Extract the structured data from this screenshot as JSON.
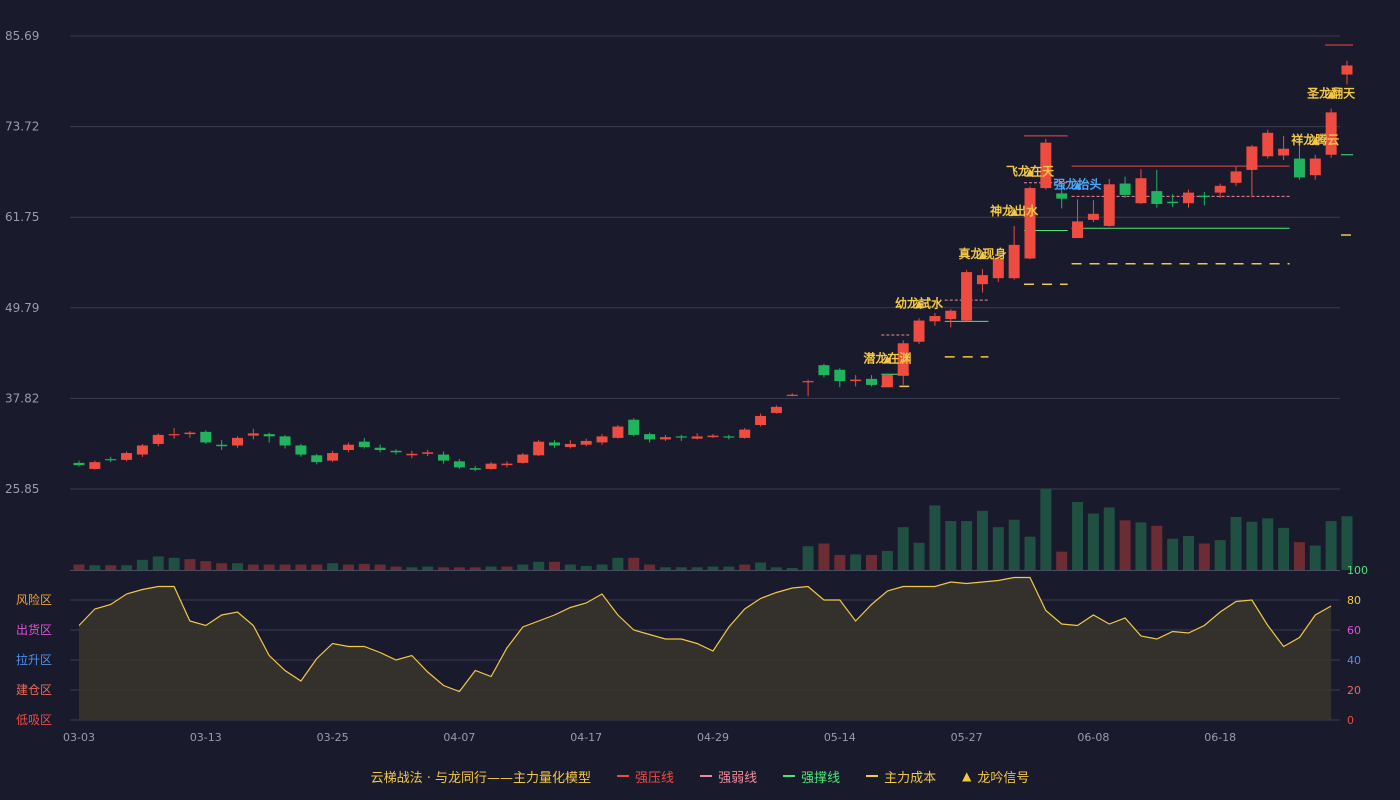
{
  "colors": {
    "background": "#191a2c",
    "up": "#ee4b41",
    "down": "#22b35e",
    "grid": "#3a3c50",
    "axis_text": "#9a9bb0",
    "signal_text": "#f2c744",
    "signal_blue": "#4fa6f5",
    "strong_press": "#ee4b41",
    "strong_weak": "#f08a9a",
    "strong_support": "#4ce678",
    "main_cost": "#f2c744",
    "osc_line": "#f2c744",
    "osc_fill": "#37342d",
    "vol_up": "#6b2c33",
    "vol_down": "#1f5042"
  },
  "legend": {
    "title": "云梯战法 · 与龙同行——主力量化模型",
    "items": [
      {
        "label": "强压线",
        "color": "#ee4b41",
        "style": "solid"
      },
      {
        "label": "强弱线",
        "color": "#f08a9a",
        "style": "dashed"
      },
      {
        "label": "强撑线",
        "color": "#4ce678",
        "style": "solid"
      },
      {
        "label": "主力成本",
        "color": "#f2c744",
        "style": "dashed"
      },
      {
        "label": "龙吟信号",
        "color": "#f2c744",
        "style": "triangle"
      }
    ]
  },
  "chart_data": {
    "type": "candlestick",
    "price_axis": {
      "ticks": [
        "85.69",
        "73.72",
        "61.75",
        "49.79",
        "37.82",
        "25.85"
      ],
      "range": [
        25.85,
        85.69
      ]
    },
    "x_ticks": [
      {
        "index": 0,
        "label": "03-03"
      },
      {
        "index": 8,
        "label": "03-13"
      },
      {
        "index": 16,
        "label": "03-25"
      },
      {
        "index": 24,
        "label": "04-07"
      },
      {
        "index": 32,
        "label": "04-17"
      },
      {
        "index": 40,
        "label": "04-29"
      },
      {
        "index": 48,
        "label": "05-14"
      },
      {
        "index": 56,
        "label": "05-27"
      },
      {
        "index": 64,
        "label": "06-08"
      },
      {
        "index": 72,
        "label": "06-18"
      }
    ],
    "candles": [
      [
        29.3,
        29.0,
        29.6,
        28.8
      ],
      [
        28.5,
        29.4,
        29.6,
        28.4
      ],
      [
        29.8,
        29.7,
        30.1,
        29.4
      ],
      [
        29.7,
        30.6,
        30.8,
        29.5
      ],
      [
        30.4,
        31.6,
        31.8,
        30.1
      ],
      [
        31.8,
        33.0,
        33.2,
        31.5
      ],
      [
        33.1,
        33.1,
        33.9,
        32.5
      ],
      [
        33.1,
        33.3,
        33.5,
        32.6
      ],
      [
        33.4,
        32.0,
        33.6,
        31.8
      ],
      [
        31.7,
        31.5,
        32.3,
        31.0
      ],
      [
        31.6,
        32.6,
        32.8,
        31.3
      ],
      [
        32.9,
        33.2,
        33.8,
        32.4
      ],
      [
        33.1,
        32.8,
        33.3,
        32.0
      ],
      [
        32.8,
        31.6,
        33.0,
        31.2
      ],
      [
        31.6,
        30.4,
        31.8,
        30.1
      ],
      [
        30.3,
        29.4,
        30.5,
        29.1
      ],
      [
        29.6,
        30.6,
        30.9,
        29.4
      ],
      [
        31.0,
        31.7,
        32.0,
        30.7
      ],
      [
        32.1,
        31.4,
        32.6,
        31.2
      ],
      [
        31.3,
        31.0,
        31.7,
        30.7
      ],
      [
        30.9,
        30.7,
        31.1,
        30.4
      ],
      [
        30.3,
        30.5,
        30.9,
        29.9
      ],
      [
        30.5,
        30.7,
        31.0,
        30.2
      ],
      [
        30.4,
        29.6,
        30.8,
        29.2
      ],
      [
        29.5,
        28.7,
        29.8,
        28.5
      ],
      [
        28.6,
        28.4,
        28.9,
        28.2
      ],
      [
        28.5,
        29.2,
        29.4,
        28.4
      ],
      [
        29.0,
        29.2,
        29.5,
        28.7
      ],
      [
        29.3,
        30.4,
        30.6,
        29.2
      ],
      [
        30.3,
        32.1,
        32.3,
        30.2
      ],
      [
        32.0,
        31.6,
        32.3,
        31.3
      ],
      [
        31.4,
        31.8,
        32.3,
        31.2
      ],
      [
        31.7,
        32.2,
        32.5,
        31.5
      ],
      [
        32.0,
        32.8,
        33.1,
        31.7
      ],
      [
        32.6,
        34.1,
        34.3,
        32.5
      ],
      [
        35.0,
        33.0,
        35.2,
        32.8
      ],
      [
        33.1,
        32.4,
        33.3,
        32.0
      ],
      [
        32.4,
        32.7,
        33.0,
        32.2
      ],
      [
        32.8,
        32.7,
        33.0,
        32.2
      ],
      [
        32.5,
        32.8,
        33.2,
        32.4
      ],
      [
        32.7,
        32.9,
        33.1,
        32.6
      ],
      [
        32.8,
        32.7,
        33.0,
        32.4
      ],
      [
        32.6,
        33.7,
        33.9,
        32.5
      ],
      [
        34.3,
        35.5,
        35.8,
        34.1
      ],
      [
        35.9,
        36.7,
        36.9,
        35.8
      ],
      [
        38.2,
        38.3,
        38.5,
        38.1
      ],
      [
        40.0,
        40.1,
        40.3,
        38.1
      ],
      [
        42.2,
        40.9,
        42.4,
        40.6
      ],
      [
        41.6,
        40.1,
        41.8,
        39.3
      ],
      [
        40.1,
        40.3,
        40.9,
        39.4
      ],
      [
        40.4,
        39.6,
        40.9,
        39.4
      ],
      [
        39.3,
        40.9,
        41.1,
        39.3
      ],
      [
        40.8,
        45.1,
        45.5,
        39.6
      ],
      [
        45.3,
        48.1,
        48.4,
        45.0
      ],
      [
        48.0,
        48.7,
        49.1,
        47.4
      ],
      [
        48.3,
        49.4,
        49.6,
        47.2
      ],
      [
        48.1,
        54.5,
        54.8,
        48.0
      ],
      [
        52.9,
        54.1,
        54.9,
        51.8
      ],
      [
        53.7,
        56.3,
        56.6,
        53.2
      ],
      [
        53.7,
        58.1,
        60.6,
        53.5
      ],
      [
        56.3,
        65.6,
        65.8,
        56.2
      ],
      [
        65.6,
        71.6,
        72.1,
        65.4
      ],
      [
        64.9,
        64.2,
        66.3,
        62.9
      ],
      [
        59.0,
        61.2,
        64.1,
        59.0
      ],
      [
        61.4,
        62.2,
        64.0,
        61.1
      ],
      [
        60.6,
        66.1,
        66.8,
        60.5
      ],
      [
        66.2,
        64.7,
        67.1,
        64.3
      ],
      [
        63.6,
        66.9,
        68.1,
        63.5
      ],
      [
        65.2,
        63.5,
        68.0,
        63.0
      ],
      [
        63.8,
        63.6,
        64.8,
        63.1
      ],
      [
        63.6,
        65.0,
        65.4,
        63.0
      ],
      [
        64.6,
        64.4,
        65.1,
        63.3
      ],
      [
        65.0,
        65.9,
        66.2,
        64.3
      ],
      [
        66.3,
        67.8,
        68.4,
        65.9
      ],
      [
        68.0,
        71.1,
        71.3,
        64.4
      ],
      [
        69.8,
        72.9,
        73.3,
        69.5
      ],
      [
        69.9,
        70.8,
        72.5,
        69.3
      ],
      [
        69.5,
        67.0,
        71.6,
        66.7
      ],
      [
        67.3,
        69.5,
        70.0,
        66.7
      ],
      [
        70.0,
        75.6,
        76.1,
        69.6
      ],
      [
        80.6,
        81.8,
        82.4,
        79.3
      ]
    ],
    "volume": [
      [
        "up",
        0.8
      ],
      [
        "down",
        0.7
      ],
      [
        "up",
        0.7
      ],
      [
        "down",
        0.7
      ],
      [
        "down",
        1.5
      ],
      [
        "down",
        2.0
      ],
      [
        "down",
        1.8
      ],
      [
        "up",
        1.6
      ],
      [
        "up",
        1.3
      ],
      [
        "up",
        1.0
      ],
      [
        "down",
        1.0
      ],
      [
        "up",
        0.8
      ],
      [
        "up",
        0.8
      ],
      [
        "up",
        0.8
      ],
      [
        "up",
        0.8
      ],
      [
        "up",
        0.8
      ],
      [
        "down",
        1.0
      ],
      [
        "up",
        0.8
      ],
      [
        "up",
        0.9
      ],
      [
        "up",
        0.8
      ],
      [
        "up",
        0.5
      ],
      [
        "down",
        0.4
      ],
      [
        "down",
        0.5
      ],
      [
        "up",
        0.4
      ],
      [
        "up",
        0.4
      ],
      [
        "up",
        0.4
      ],
      [
        "down",
        0.5
      ],
      [
        "up",
        0.5
      ],
      [
        "down",
        0.8
      ],
      [
        "down",
        1.2
      ],
      [
        "up",
        1.2
      ],
      [
        "down",
        0.8
      ],
      [
        "down",
        0.6
      ],
      [
        "down",
        0.8
      ],
      [
        "down",
        1.8
      ],
      [
        "up",
        1.8
      ],
      [
        "up",
        0.8
      ],
      [
        "down",
        0.4
      ],
      [
        "down",
        0.4
      ],
      [
        "down",
        0.4
      ],
      [
        "down",
        0.5
      ],
      [
        "down",
        0.5
      ],
      [
        "up",
        0.8
      ],
      [
        "down",
        1.1
      ],
      [
        "down",
        0.4
      ],
      [
        "down",
        0.3
      ],
      [
        "down",
        3.5
      ],
      [
        "up",
        3.9
      ],
      [
        "up",
        2.2
      ],
      [
        "down",
        2.3
      ],
      [
        "up",
        2.2
      ],
      [
        "down",
        2.8
      ],
      [
        "down",
        6.3
      ],
      [
        "down",
        4.0
      ],
      [
        "down",
        9.5
      ],
      [
        "down",
        7.2
      ],
      [
        "down",
        7.2
      ],
      [
        "down",
        8.7
      ],
      [
        "down",
        6.3
      ],
      [
        "down",
        7.4
      ],
      [
        "down",
        4.9
      ],
      [
        "down",
        12.0
      ],
      [
        "up",
        2.7
      ],
      [
        "down",
        10.0
      ],
      [
        "down",
        8.3
      ],
      [
        "down",
        9.2
      ],
      [
        "up",
        7.3
      ],
      [
        "down",
        7.0
      ],
      [
        "up",
        6.5
      ],
      [
        "down",
        4.6
      ],
      [
        "down",
        5.0
      ],
      [
        "up",
        3.9
      ],
      [
        "down",
        4.4
      ],
      [
        "down",
        7.8
      ],
      [
        "down",
        7.1
      ],
      [
        "down",
        7.6
      ],
      [
        "down",
        6.2
      ],
      [
        "up",
        4.1
      ],
      [
        "down",
        3.6
      ],
      [
        "down",
        7.2
      ],
      [
        "down",
        7.9
      ]
    ],
    "oscillator": {
      "range": [
        0,
        100
      ],
      "ticks": [
        "100",
        "80",
        "60",
        "40",
        "20",
        "0"
      ],
      "zones": [
        "风险区",
        "出货区",
        "拉升区",
        "建仓区",
        "低吸区"
      ],
      "values": [
        63,
        74,
        77,
        84,
        87,
        89,
        89,
        66,
        63,
        70,
        72,
        63,
        43,
        33,
        26,
        41,
        51,
        49,
        49,
        45,
        40,
        43,
        32,
        23,
        19,
        33,
        29,
        48,
        62,
        66,
        70,
        75,
        78,
        84,
        70,
        60,
        57,
        54,
        54,
        51,
        46,
        62,
        74,
        81,
        85,
        88,
        89,
        80,
        80,
        66,
        77,
        86,
        89,
        89,
        89,
        92,
        91,
        92,
        93,
        95,
        95,
        73,
        64,
        63,
        70,
        64,
        68,
        56,
        54,
        59,
        58,
        63,
        72,
        79,
        80,
        63,
        49,
        55,
        70,
        76
      ]
    },
    "signals": [
      {
        "index": 51,
        "label": "潜龙在渊",
        "color": "gold"
      },
      {
        "index": 53,
        "label": "幼龙試水",
        "color": "gold"
      },
      {
        "index": 57,
        "label": "真龙现身",
        "color": "gold"
      },
      {
        "index": 59,
        "label": "神龙出水",
        "color": "gold"
      },
      {
        "index": 60,
        "label": "飞龙在天",
        "color": "gold"
      },
      {
        "index": 63,
        "label": "强龙抬头",
        "color": "blue"
      },
      {
        "index": 78,
        "label": "祥龙腾云",
        "color": "gold"
      },
      {
        "index": 79,
        "label": "圣龙翻天",
        "color": "gold"
      }
    ],
    "levels": [
      {
        "type": "strong_press",
        "from": 60,
        "to": 62,
        "value": 72.5
      },
      {
        "type": "strong_press",
        "from": 63,
        "to": 76,
        "value": 68.5
      },
      {
        "type": "strong_press",
        "from": 79,
        "to": 80,
        "value": 84.5
      },
      {
        "type": "strong_weak",
        "from": 51,
        "to": 52,
        "value": 46.2
      },
      {
        "type": "strong_weak",
        "from": 55,
        "to": 57,
        "value": 50.8
      },
      {
        "type": "strong_weak",
        "from": 60,
        "to": 62,
        "value": 66.3
      },
      {
        "type": "strong_weak",
        "from": 63,
        "to": 76,
        "value": 64.5
      },
      {
        "type": "strong_support",
        "from": 51,
        "to": 52,
        "value": 41.0
      },
      {
        "type": "strong_support",
        "from": 55,
        "to": 57,
        "value": 48.0
      },
      {
        "type": "strong_support",
        "from": 60,
        "to": 62,
        "value": 60.0
      },
      {
        "type": "strong_support",
        "from": 63,
        "to": 76,
        "value": 60.3
      },
      {
        "type": "strong_support",
        "from": 80,
        "to": 80,
        "value": 70.0
      },
      {
        "type": "main_cost",
        "from": 51,
        "to": 52,
        "value": 39.4
      },
      {
        "type": "main_cost",
        "from": 55,
        "to": 57,
        "value": 43.3
      },
      {
        "type": "main_cost",
        "from": 60,
        "to": 62,
        "value": 52.9
      },
      {
        "type": "main_cost",
        "from": 63,
        "to": 76,
        "value": 55.6
      },
      {
        "type": "main_cost",
        "from": 80,
        "to": 80,
        "value": 59.4
      }
    ]
  }
}
